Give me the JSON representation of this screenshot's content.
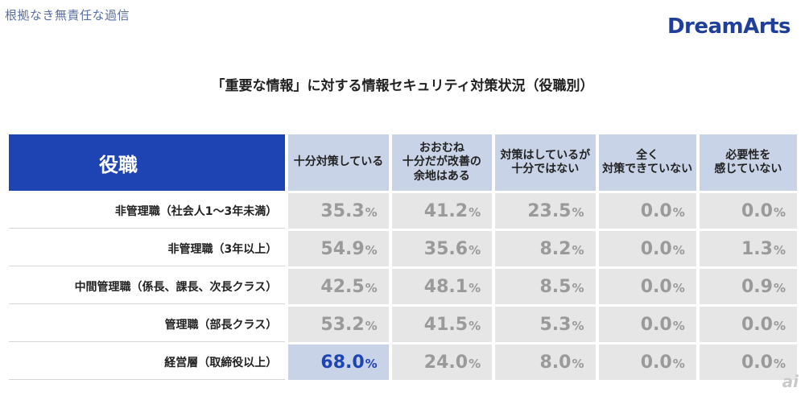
{
  "header": {
    "note": "根拠なき無責任な過信",
    "logo": "DreamArts",
    "title": "「重要な情報」に対する情報セキュリティ対策状況（役職別）"
  },
  "chart_data": {
    "type": "table",
    "title": "「重要な情報」に対する情報セキュリティ対策状況（役職別）",
    "row_header_label": "役職",
    "columns": [
      "十分対策している",
      "おおむね\n十分だが改善の\n余地はある",
      "対策はしているが\n十分ではない",
      "全く\n対策できていない",
      "必要性を\n感じていない"
    ],
    "unit": "%",
    "rows": [
      {
        "label": "非管理職（社会人1～3年未満）",
        "values": [
          "35.3",
          "41.2",
          "23.5",
          "0.0",
          "0.0"
        ]
      },
      {
        "label": "非管理職（3年以上）",
        "values": [
          "54.9",
          "35.6",
          "8.2",
          "0.0",
          "1.3"
        ]
      },
      {
        "label": "中間管理職（係長、課長、次長クラス）",
        "values": [
          "42.5",
          "48.1",
          "8.5",
          "0.0",
          "0.9"
        ]
      },
      {
        "label": "管理職（部長クラス）",
        "values": [
          "53.2",
          "41.5",
          "5.3",
          "0.0",
          "0.0"
        ]
      },
      {
        "label": "経営層（取締役以上）",
        "values": [
          "68.0",
          "24.0",
          "8.0",
          "0.0",
          "0.0"
        ]
      }
    ],
    "highlight": {
      "row": 4,
      "col": 0
    },
    "colors": {
      "header_role_bg": "#1e44b4",
      "header_col_bg": "#c9d3e8",
      "cell_bg": "#e6e6e6",
      "highlight_text": "#1e44b4",
      "value_text": "#9a9a9a"
    }
  },
  "watermark": "ai"
}
